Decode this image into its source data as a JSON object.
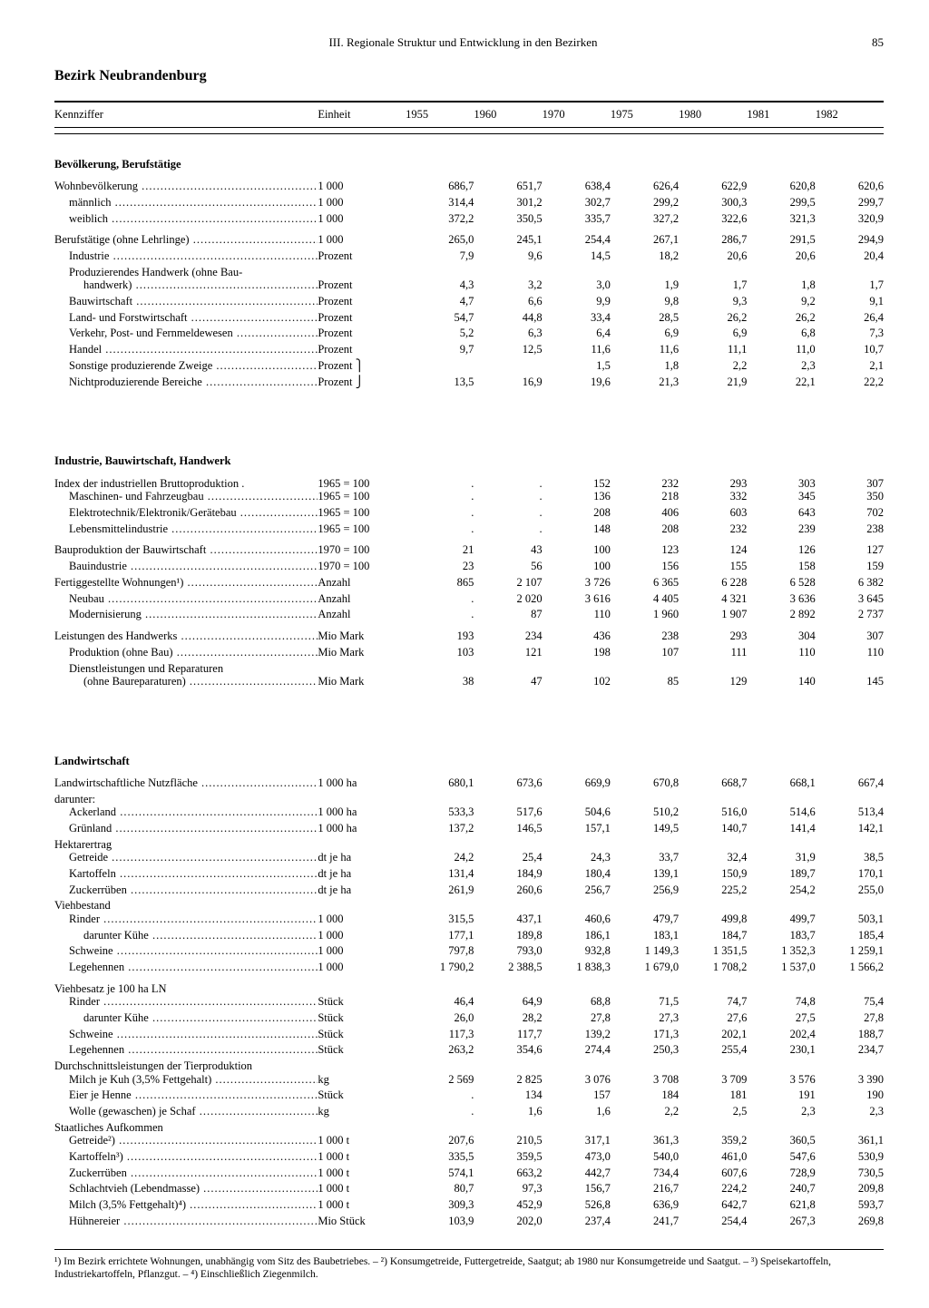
{
  "header": {
    "chapter": "III. Regionale Struktur und Entwicklung in den Bezirken",
    "page": "85"
  },
  "title": "Bezirk Neubrandenburg",
  "columns": {
    "label": "Kennziffer",
    "unit": "Einheit",
    "years": [
      "1955",
      "1960",
      "1970",
      "1975",
      "1980",
      "1981",
      "1982"
    ]
  },
  "sections": [
    {
      "title": "Bevölkerung, Berufstätige",
      "groups": [
        {
          "rows": [
            {
              "l": "Wohnbevölkerung",
              "u": "1 000",
              "v": [
                "686,7",
                "651,7",
                "638,4",
                "626,4",
                "622,9",
                "620,8",
                "620,6"
              ]
            },
            {
              "l": "männlich",
              "i": 1,
              "u": "1 000",
              "v": [
                "314,4",
                "301,2",
                "302,7",
                "299,2",
                "300,3",
                "299,5",
                "299,7"
              ]
            },
            {
              "l": "weiblich",
              "i": 1,
              "u": "1 000",
              "v": [
                "372,2",
                "350,5",
                "335,7",
                "327,2",
                "322,6",
                "321,3",
                "320,9"
              ]
            }
          ]
        },
        {
          "rows": [
            {
              "l": "Berufstätige (ohne Lehrlinge)",
              "u": "1 000",
              "v": [
                "265,0",
                "245,1",
                "254,4",
                "267,1",
                "286,7",
                "291,5",
                "294,9"
              ]
            },
            {
              "l": "Industrie",
              "i": 1,
              "u": "Prozent",
              "v": [
                "7,9",
                "9,6",
                "14,5",
                "18,2",
                "20,6",
                "20,6",
                "20,4"
              ]
            },
            {
              "l": "Produzierendes Handwerk (ohne Bau-",
              "i": 1,
              "nodots": true,
              "u": "",
              "v": [
                "",
                "",
                "",
                "",
                "",
                "",
                ""
              ]
            },
            {
              "l": "handwerk)",
              "i": 2,
              "u": "Prozent",
              "v": [
                "4,3",
                "3,2",
                "3,0",
                "1,9",
                "1,7",
                "1,8",
                "1,7"
              ]
            },
            {
              "l": "Bauwirtschaft",
              "i": 1,
              "u": "Prozent",
              "v": [
                "4,7",
                "6,6",
                "9,9",
                "9,8",
                "9,3",
                "9,2",
                "9,1"
              ]
            },
            {
              "l": "Land- und Forstwirtschaft",
              "i": 1,
              "u": "Prozent",
              "v": [
                "54,7",
                "44,8",
                "33,4",
                "28,5",
                "26,2",
                "26,2",
                "26,4"
              ]
            },
            {
              "l": "Verkehr, Post- und Fernmeldewesen",
              "i": 1,
              "u": "Prozent",
              "v": [
                "5,2",
                "6,3",
                "6,4",
                "6,9",
                "6,9",
                "6,8",
                "7,3"
              ]
            },
            {
              "l": "Handel",
              "i": 1,
              "u": "Prozent",
              "v": [
                "9,7",
                "12,5",
                "11,6",
                "11,6",
                "11,1",
                "11,0",
                "10,7"
              ]
            },
            {
              "l": "Sonstige produzierende Zweige",
              "i": 1,
              "u": "Prozent  ⎫",
              "v": [
                "",
                "",
                "1,5",
                "1,8",
                "2,2",
                "2,3",
                "2,1"
              ],
              "braceTop": true
            },
            {
              "l": "Nichtproduzierende Bereiche",
              "i": 1,
              "u": "Prozent  ⎭",
              "v": [
                "13,5",
                "16,9",
                "19,6",
                "21,3",
                "21,9",
                "22,1",
                "22,2"
              ],
              "braceBot": true,
              "mergeUp": [
                "13,5",
                "16,9"
              ]
            }
          ]
        }
      ]
    },
    {
      "title": "Industrie, Bauwirtschaft, Handwerk",
      "groups": [
        {
          "rows": [
            {
              "l": "Index der industriellen Bruttoproduktion .",
              "nodots": true,
              "u": "1965 = 100",
              "v": [
                ".",
                ".",
                "152",
                "232",
                "293",
                "303",
                "307"
              ]
            },
            {
              "l": "Maschinen- und Fahrzeugbau",
              "i": 1,
              "u": "1965 = 100",
              "v": [
                ".",
                ".",
                "136",
                "218",
                "332",
                "345",
                "350"
              ]
            },
            {
              "l": "Elektrotechnik/Elektronik/Gerätebau",
              "i": 1,
              "u": "1965 = 100",
              "v": [
                ".",
                ".",
                "208",
                "406",
                "603",
                "643",
                "702"
              ]
            },
            {
              "l": "Lebensmittelindustrie",
              "i": 1,
              "u": "1965 = 100",
              "v": [
                ".",
                ".",
                "148",
                "208",
                "232",
                "239",
                "238"
              ]
            }
          ]
        },
        {
          "rows": [
            {
              "l": "Bauproduktion der Bauwirtschaft",
              "u": "1970 = 100",
              "v": [
                "21",
                "43",
                "100",
                "123",
                "124",
                "126",
                "127"
              ]
            },
            {
              "l": "Bauindustrie",
              "i": 1,
              "u": "1970 = 100",
              "v": [
                "23",
                "56",
                "100",
                "156",
                "155",
                "158",
                "159"
              ]
            },
            {
              "l": "Fertiggestellte Wohnungen¹)",
              "u": "Anzahl",
              "v": [
                "865",
                "2 107",
                "3 726",
                "6 365",
                "6 228",
                "6 528",
                "6 382"
              ]
            },
            {
              "l": "Neubau",
              "i": 1,
              "u": "Anzahl",
              "v": [
                ".",
                "2 020",
                "3 616",
                "4 405",
                "4 321",
                "3 636",
                "3 645"
              ]
            },
            {
              "l": "Modernisierung",
              "i": 1,
              "u": "Anzahl",
              "v": [
                ".",
                "87",
                "110",
                "1 960",
                "1 907",
                "2 892",
                "2 737"
              ]
            }
          ]
        },
        {
          "rows": [
            {
              "l": "Leistungen des Handwerks",
              "u": "Mio Mark",
              "v": [
                "193",
                "234",
                "436",
                "238",
                "293",
                "304",
                "307"
              ]
            },
            {
              "l": "Produktion (ohne Bau)",
              "i": 1,
              "u": "Mio Mark",
              "v": [
                "103",
                "121",
                "198",
                "107",
                "111",
                "110",
                "110"
              ]
            },
            {
              "l": "Dienstleistungen und Reparaturen",
              "i": 1,
              "nodots": true,
              "u": "",
              "v": [
                "",
                "",
                "",
                "",
                "",
                "",
                ""
              ]
            },
            {
              "l": "(ohne Baureparaturen)",
              "i": 2,
              "u": "Mio Mark",
              "v": [
                "38",
                "47",
                "102",
                "85",
                "129",
                "140",
                "145"
              ]
            }
          ]
        }
      ]
    },
    {
      "title": "Landwirtschaft",
      "groups": [
        {
          "rows": [
            {
              "l": "Landwirtschaftliche Nutzfläche",
              "u": "1 000 ha",
              "v": [
                "680,1",
                "673,6",
                "669,9",
                "670,8",
                "668,7",
                "668,1",
                "667,4"
              ]
            },
            {
              "l": "darunter:",
              "nodots": true,
              "u": "",
              "v": [
                "",
                "",
                "",
                "",
                "",
                "",
                ""
              ]
            },
            {
              "l": "Ackerland",
              "i": 1,
              "u": "1 000 ha",
              "v": [
                "533,3",
                "517,6",
                "504,6",
                "510,2",
                "516,0",
                "514,6",
                "513,4"
              ]
            },
            {
              "l": "Grünland",
              "i": 1,
              "u": "1 000 ha",
              "v": [
                "137,2",
                "146,5",
                "157,1",
                "149,5",
                "140,7",
                "141,4",
                "142,1"
              ]
            },
            {
              "l": "Hektarertrag",
              "nodots": true,
              "u": "",
              "v": [
                "",
                "",
                "",
                "",
                "",
                "",
                ""
              ]
            },
            {
              "l": "Getreide",
              "i": 1,
              "u": "dt je ha",
              "v": [
                "24,2",
                "25,4",
                "24,3",
                "33,7",
                "32,4",
                "31,9",
                "38,5"
              ]
            },
            {
              "l": "Kartoffeln",
              "i": 1,
              "u": "dt je ha",
              "v": [
                "131,4",
                "184,9",
                "180,4",
                "139,1",
                "150,9",
                "189,7",
                "170,1"
              ]
            },
            {
              "l": "Zuckerrüben",
              "i": 1,
              "u": "dt je ha",
              "v": [
                "261,9",
                "260,6",
                "256,7",
                "256,9",
                "225,2",
                "254,2",
                "255,0"
              ]
            },
            {
              "l": "Viehbestand",
              "nodots": true,
              "u": "",
              "v": [
                "",
                "",
                "",
                "",
                "",
                "",
                ""
              ]
            },
            {
              "l": "Rinder",
              "i": 1,
              "u": "1 000",
              "v": [
                "315,5",
                "437,1",
                "460,6",
                "479,7",
                "499,8",
                "499,7",
                "503,1"
              ]
            },
            {
              "l": "darunter Kühe",
              "i": 2,
              "u": "1 000",
              "v": [
                "177,1",
                "189,8",
                "186,1",
                "183,1",
                "184,7",
                "183,7",
                "185,4"
              ]
            },
            {
              "l": "Schweine",
              "i": 1,
              "u": "1 000",
              "v": [
                "797,8",
                "793,0",
                "932,8",
                "1 149,3",
                "1 351,5",
                "1 352,3",
                "1 259,1"
              ]
            },
            {
              "l": "Legehennen",
              "i": 1,
              "u": "1 000",
              "v": [
                "1 790,2",
                "2 388,5",
                "1 838,3",
                "1 679,0",
                "1 708,2",
                "1 537,0",
                "1 566,2"
              ]
            }
          ]
        },
        {
          "rows": [
            {
              "l": "Viehbesatz je 100 ha LN",
              "nodots": true,
              "u": "",
              "v": [
                "",
                "",
                "",
                "",
                "",
                "",
                ""
              ]
            },
            {
              "l": "Rinder",
              "i": 1,
              "u": "Stück",
              "v": [
                "46,4",
                "64,9",
                "68,8",
                "71,5",
                "74,7",
                "74,8",
                "75,4"
              ]
            },
            {
              "l": "darunter Kühe",
              "i": 2,
              "u": "Stück",
              "v": [
                "26,0",
                "28,2",
                "27,8",
                "27,3",
                "27,6",
                "27,5",
                "27,8"
              ]
            },
            {
              "l": "Schweine",
              "i": 1,
              "u": "Stück",
              "v": [
                "117,3",
                "117,7",
                "139,2",
                "171,3",
                "202,1",
                "202,4",
                "188,7"
              ]
            },
            {
              "l": "Legehennen",
              "i": 1,
              "u": "Stück",
              "v": [
                "263,2",
                "354,6",
                "274,4",
                "250,3",
                "255,4",
                "230,1",
                "234,7"
              ]
            },
            {
              "l": "Durchschnittsleistungen der Tierproduktion",
              "nodots": true,
              "u": "",
              "v": [
                "",
                "",
                "",
                "",
                "",
                "",
                ""
              ]
            },
            {
              "l": "Milch je Kuh (3,5% Fettgehalt)",
              "i": 1,
              "u": "kg",
              "v": [
                "2 569",
                "2 825",
                "3 076",
                "3 708",
                "3 709",
                "3 576",
                "3 390"
              ]
            },
            {
              "l": "Eier je Henne",
              "i": 1,
              "u": "Stück",
              "v": [
                ".",
                "134",
                "157",
                "184",
                "181",
                "191",
                "190"
              ]
            },
            {
              "l": "Wolle (gewaschen) je Schaf",
              "i": 1,
              "u": "kg",
              "v": [
                ".",
                "1,6",
                "1,6",
                "2,2",
                "2,5",
                "2,3",
                "2,3"
              ]
            },
            {
              "l": "Staatliches Aufkommen",
              "nodots": true,
              "u": "",
              "v": [
                "",
                "",
                "",
                "",
                "",
                "",
                ""
              ]
            },
            {
              "l": "Getreide²)",
              "i": 1,
              "u": "1 000 t",
              "v": [
                "207,6",
                "210,5",
                "317,1",
                "361,3",
                "359,2",
                "360,5",
                "361,1"
              ]
            },
            {
              "l": "Kartoffeln³)",
              "i": 1,
              "u": "1 000 t",
              "v": [
                "335,5",
                "359,5",
                "473,0",
                "540,0",
                "461,0",
                "547,6",
                "530,9"
              ]
            },
            {
              "l": "Zuckerrüben",
              "i": 1,
              "u": "1 000 t",
              "v": [
                "574,1",
                "663,2",
                "442,7",
                "734,4",
                "607,6",
                "728,9",
                "730,5"
              ]
            },
            {
              "l": "Schlachtvieh (Lebendmasse)",
              "i": 1,
              "u": "1 000 t",
              "v": [
                "80,7",
                "97,3",
                "156,7",
                "216,7",
                "224,2",
                "240,7",
                "209,8"
              ]
            },
            {
              "l": "Milch (3,5% Fettgehalt)⁴)",
              "i": 1,
              "u": "1 000 t",
              "v": [
                "309,3",
                "452,9",
                "526,8",
                "636,9",
                "642,7",
                "621,8",
                "593,7"
              ]
            },
            {
              "l": "Hühnereier",
              "i": 1,
              "u": "Mio Stück",
              "v": [
                "103,9",
                "202,0",
                "237,4",
                "241,7",
                "254,4",
                "267,3",
                "269,8"
              ]
            }
          ]
        }
      ]
    }
  ],
  "footnotes": "¹) Im Bezirk errichtete Wohnungen, unabhängig vom Sitz des Baubetriebes.  –  ²) Konsumgetreide, Futtergetreide, Saatgut; ab 1980 nur Konsumgetreide und Saatgut.  –  ³) Speisekartoffeln, Industriekartoffeln, Pflanzgut.  –  ⁴) Einschließlich Ziegenmilch."
}
